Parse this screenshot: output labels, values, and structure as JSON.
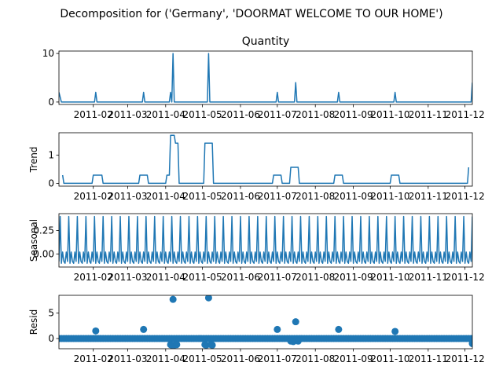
{
  "figure": {
    "suptitle": "Decomposition for ('Germany', 'DOORMAT WELCOME TO OUR HOME')",
    "series_color": "#1f77b4"
  },
  "chart_data": [
    {
      "type": "line",
      "title": "Quantity",
      "ylabel": "",
      "x_ticks": [
        "2011-02",
        "2011-03",
        "2011-04",
        "2011-05",
        "2011-06",
        "2011-07",
        "2011-08",
        "2011-09",
        "2011-10",
        "2011-11",
        "2011-12"
      ],
      "y_ticks": [
        "0",
        "10"
      ],
      "xlim": [
        "2011-01-04",
        "2011-12-07"
      ],
      "ylim": [
        -0.5,
        10.5
      ],
      "series": [
        {
          "points": [
            [
              "2011-01-04",
              2
            ],
            [
              "2011-01-06",
              0
            ],
            [
              "2011-02-02",
              0
            ],
            [
              "2011-02-03",
              2
            ],
            [
              "2011-02-04",
              0
            ],
            [
              "2011-03-13",
              0
            ],
            [
              "2011-03-14",
              2
            ],
            [
              "2011-03-15",
              0
            ],
            [
              "2011-04-04",
              0
            ],
            [
              "2011-04-05",
              2
            ],
            [
              "2011-04-06",
              0
            ],
            [
              "2011-04-07",
              10
            ],
            [
              "2011-04-08",
              0
            ],
            [
              "2011-05-05",
              0
            ],
            [
              "2011-05-06",
              10
            ],
            [
              "2011-05-07",
              0
            ],
            [
              "2011-06-30",
              0
            ],
            [
              "2011-07-01",
              2
            ],
            [
              "2011-07-02",
              0
            ],
            [
              "2011-07-15",
              0
            ],
            [
              "2011-07-16",
              4
            ],
            [
              "2011-07-17",
              0
            ],
            [
              "2011-08-19",
              0
            ],
            [
              "2011-08-20",
              2
            ],
            [
              "2011-08-21",
              0
            ],
            [
              "2011-10-04",
              0
            ],
            [
              "2011-10-05",
              2
            ],
            [
              "2011-10-06",
              0
            ],
            [
              "2011-12-06",
              0
            ],
            [
              "2011-12-07",
              4
            ]
          ]
        }
      ]
    },
    {
      "type": "line",
      "title": "",
      "ylabel": "Trend",
      "x_ticks": [
        "2011-02",
        "2011-03",
        "2011-04",
        "2011-05",
        "2011-06",
        "2011-07",
        "2011-08",
        "2011-09",
        "2011-10",
        "2011-11",
        "2011-12"
      ],
      "y_ticks": [
        "0",
        "1"
      ],
      "xlim": [
        "2011-01-04",
        "2011-12-07"
      ],
      "ylim": [
        -0.1,
        1.8
      ],
      "series": [
        {
          "points": [
            [
              "2011-01-07",
              0.29
            ],
            [
              "2011-01-08",
              0
            ],
            [
              "2011-01-31",
              0
            ],
            [
              "2011-02-01",
              0.29
            ],
            [
              "2011-02-08",
              0.29
            ],
            [
              "2011-02-09",
              0
            ],
            [
              "2011-03-10",
              0
            ],
            [
              "2011-03-11",
              0.29
            ],
            [
              "2011-03-17",
              0.29
            ],
            [
              "2011-03-18",
              0
            ],
            [
              "2011-04-01",
              0
            ],
            [
              "2011-04-02",
              0.29
            ],
            [
              "2011-04-04",
              0.29
            ],
            [
              "2011-04-05",
              1.71
            ],
            [
              "2011-04-08",
              1.71
            ],
            [
              "2011-04-09",
              1.43
            ],
            [
              "2011-04-11",
              1.43
            ],
            [
              "2011-04-12",
              0
            ],
            [
              "2011-05-02",
              0
            ],
            [
              "2011-05-03",
              1.43
            ],
            [
              "2011-05-09",
              1.43
            ],
            [
              "2011-05-10",
              0
            ],
            [
              "2011-06-27",
              0
            ],
            [
              "2011-06-28",
              0.29
            ],
            [
              "2011-07-04",
              0.29
            ],
            [
              "2011-07-05",
              0
            ],
            [
              "2011-07-11",
              0
            ],
            [
              "2011-07-12",
              0.57
            ],
            [
              "2011-07-18",
              0.57
            ],
            [
              "2011-07-19",
              0
            ],
            [
              "2011-08-16",
              0
            ],
            [
              "2011-08-17",
              0.29
            ],
            [
              "2011-08-23",
              0.29
            ],
            [
              "2011-08-24",
              0
            ],
            [
              "2011-10-01",
              0
            ],
            [
              "2011-10-02",
              0.29
            ],
            [
              "2011-10-08",
              0.29
            ],
            [
              "2011-10-09",
              0
            ],
            [
              "2011-12-03",
              0
            ],
            [
              "2011-12-04",
              0.57
            ]
          ]
        }
      ]
    },
    {
      "type": "line",
      "title": "",
      "ylabel": "Seasonal",
      "x_ticks": [
        "2011-02",
        "2011-03",
        "2011-04",
        "2011-05",
        "2011-06",
        "2011-07",
        "2011-08",
        "2011-09",
        "2011-10",
        "2011-11",
        "2011-12"
      ],
      "y_ticks": [
        "0.00",
        "0.25"
      ],
      "xlim": [
        "2011-01-04",
        "2011-12-07"
      ],
      "ylim": [
        -0.14,
        0.43
      ],
      "period_days": 7,
      "weekly_pattern": [
        -0.08,
        0.4,
        -0.1,
        0.02,
        -0.08,
        -0.1,
        0.02
      ],
      "start_date": "2011-01-04",
      "end_date": "2011-12-07",
      "series": [
        {
          "points": []
        }
      ]
    },
    {
      "type": "scatter",
      "title": "",
      "ylabel": "Resid",
      "x_ticks": [
        "2011-02",
        "2011-03",
        "2011-04",
        "2011-05",
        "2011-06",
        "2011-07",
        "2011-08",
        "2011-09",
        "2011-10",
        "2011-11",
        "2011-12"
      ],
      "y_ticks": [
        "0",
        "5"
      ],
      "xlim": [
        "2011-01-04",
        "2011-12-07"
      ],
      "ylim": [
        -2.0,
        8.5
      ],
      "series": [
        {
          "points": [
            [
              "2011-02-03",
              1.5
            ],
            [
              "2011-03-14",
              1.8
            ],
            [
              "2011-04-07",
              7.7
            ],
            [
              "2011-05-06",
              8.0
            ],
            [
              "2011-07-01",
              1.8
            ],
            [
              "2011-07-16",
              3.3
            ],
            [
              "2011-08-20",
              1.8
            ],
            [
              "2011-10-05",
              1.4
            ],
            [
              "2011-04-05",
              -1.2
            ],
            [
              "2011-04-06",
              -1.3
            ],
            [
              "2011-04-08",
              -1.3
            ],
            [
              "2011-04-10",
              -1.2
            ],
            [
              "2011-05-03",
              -1.2
            ],
            [
              "2011-05-04",
              -1.3
            ],
            [
              "2011-05-08",
              -1.2
            ],
            [
              "2011-05-09",
              -1.3
            ],
            [
              "2011-07-12",
              -0.5
            ],
            [
              "2011-07-14",
              -0.6
            ],
            [
              "2011-07-18",
              -0.5
            ],
            [
              "2011-12-07",
              -1.0
            ]
          ],
          "baseline_dates": {
            "start": "2011-01-04",
            "end": "2011-12-07",
            "step_days": 2,
            "value": 0
          }
        }
      ]
    }
  ]
}
